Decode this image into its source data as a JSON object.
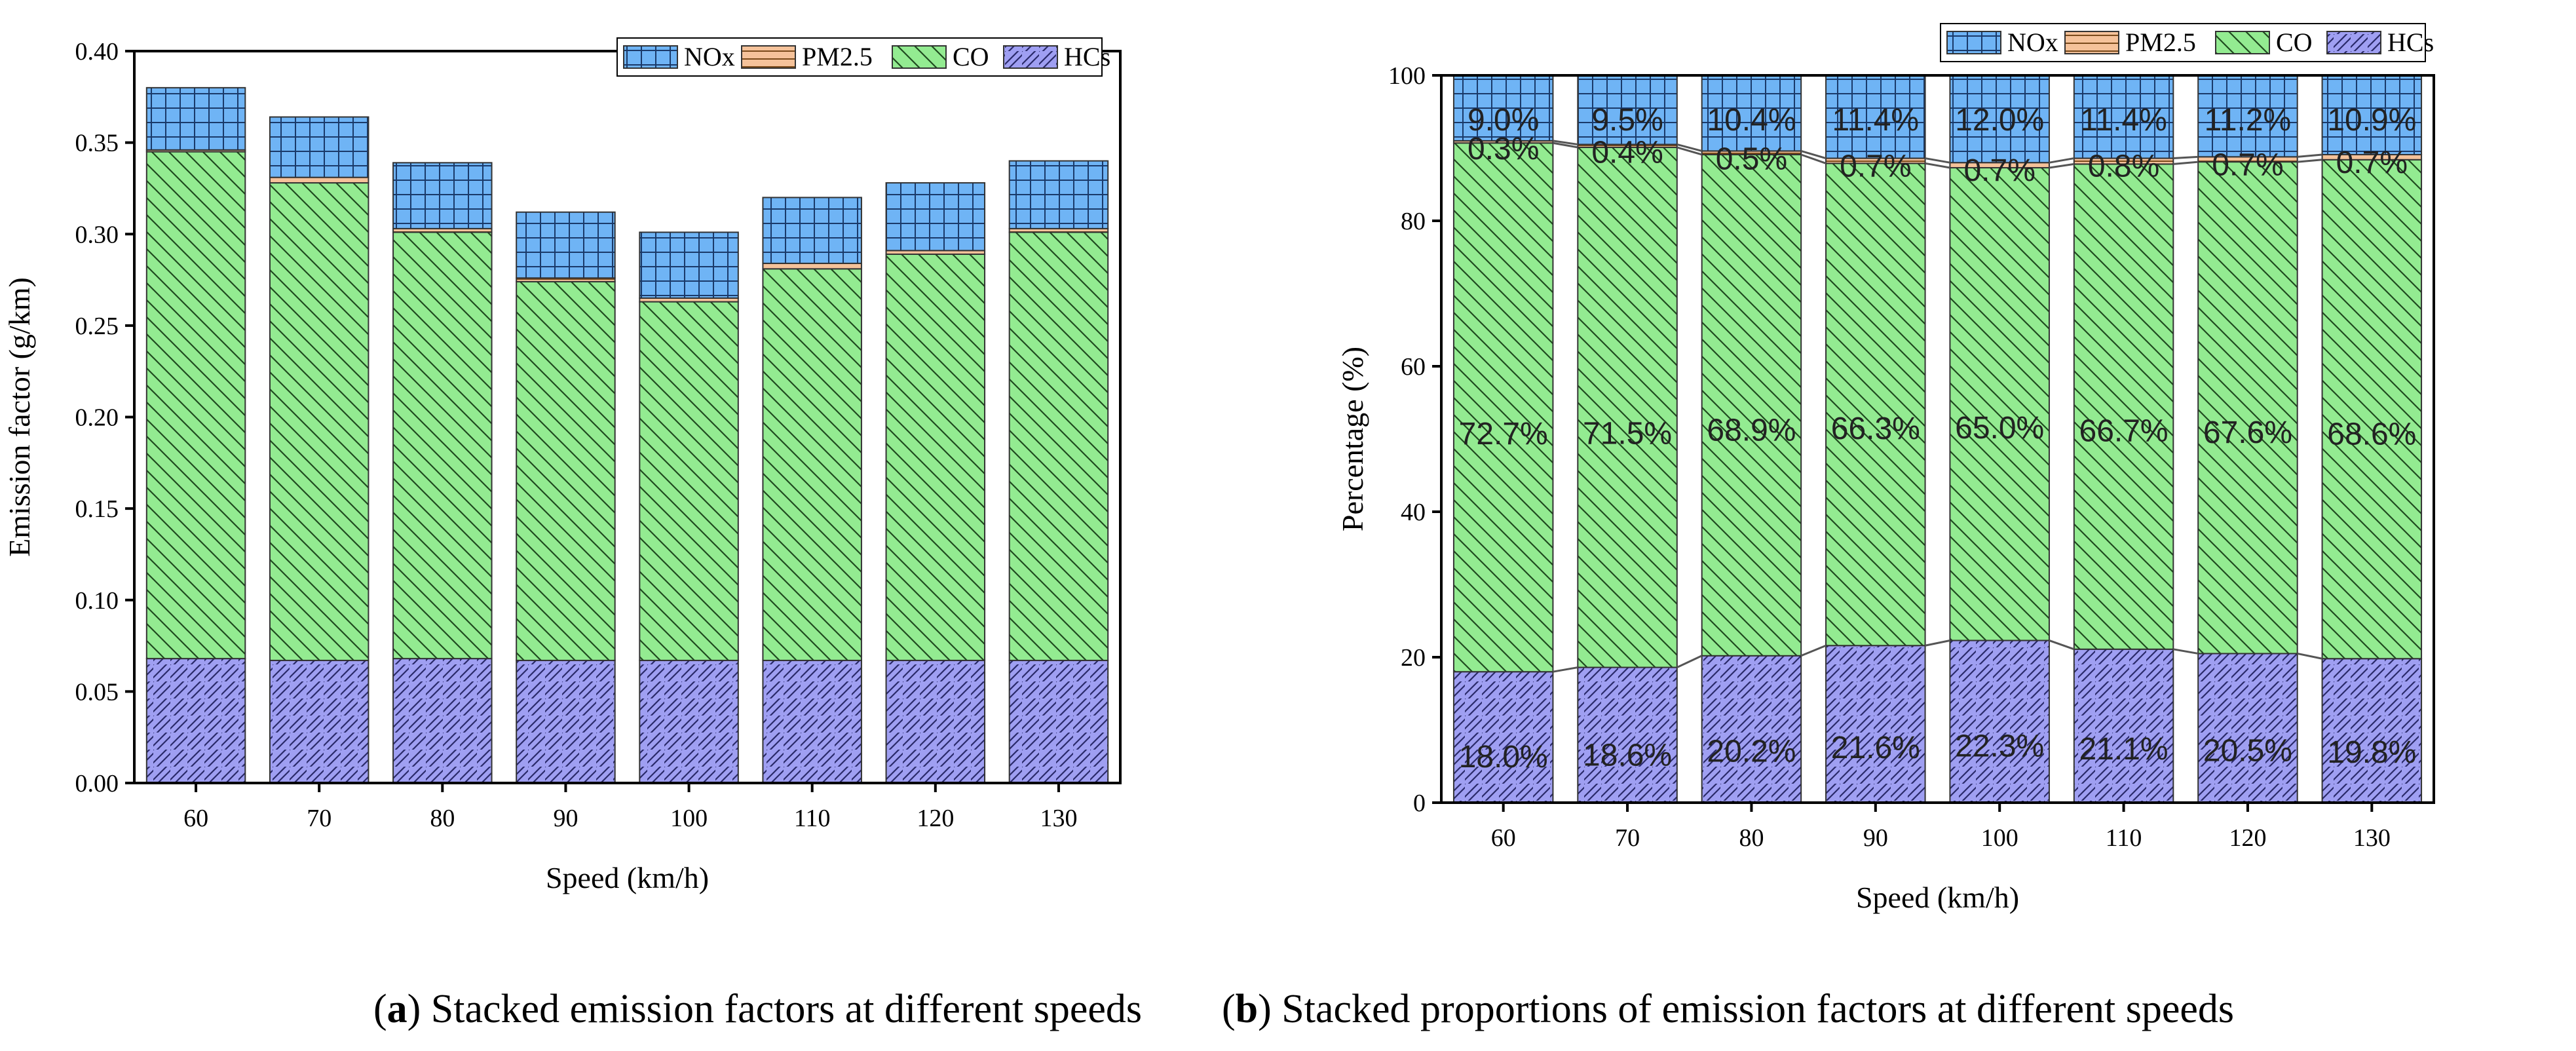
{
  "series_order": [
    "HCs",
    "CO",
    "PM2.5",
    "NOx"
  ],
  "legend_order": [
    "NOx",
    "PM2.5",
    "CO",
    "HCs"
  ],
  "colors": {
    "HCs": "#9f9ff2",
    "CO": "#93eb91",
    "PM2.5": "#f5c29a",
    "NOx": "#6fb4f5"
  },
  "chart_data": [
    {
      "type": "bar",
      "stacked": true,
      "title": "",
      "xlabel": "Speed (km/h)",
      "ylabel": "Emission factor (g/km)",
      "categories": [
        "60",
        "70",
        "80",
        "90",
        "100",
        "110",
        "120",
        "130"
      ],
      "ylim": [
        0,
        0.4
      ],
      "yticks": [
        "0.00",
        "0.05",
        "0.10",
        "0.15",
        "0.20",
        "0.25",
        "0.30",
        "0.35",
        "0.40"
      ],
      "legend": "top-right",
      "series": [
        {
          "name": "HCs",
          "values": [
            0.068,
            0.067,
            0.068,
            0.067,
            0.067,
            0.067,
            0.067,
            0.067
          ]
        },
        {
          "name": "CO",
          "values": [
            0.277,
            0.261,
            0.233,
            0.207,
            0.196,
            0.214,
            0.222,
            0.234
          ]
        },
        {
          "name": "PM2.5",
          "values": [
            0.001,
            0.003,
            0.002,
            0.002,
            0.002,
            0.003,
            0.002,
            0.002
          ]
        },
        {
          "name": "NOx",
          "values": [
            0.034,
            0.033,
            0.036,
            0.036,
            0.036,
            0.036,
            0.037,
            0.037
          ]
        }
      ]
    },
    {
      "type": "bar",
      "stacked": true,
      "title": "",
      "xlabel": "Speed (km/h)",
      "ylabel": "Percentage (%)",
      "categories": [
        "60",
        "70",
        "80",
        "90",
        "100",
        "110",
        "120",
        "130"
      ],
      "ylim": [
        0,
        100
      ],
      "yticks": [
        "0",
        "20",
        "40",
        "60",
        "80",
        "100"
      ],
      "legend": "top-right",
      "series": [
        {
          "name": "HCs",
          "values": [
            18.0,
            18.6,
            20.2,
            21.6,
            22.3,
            21.1,
            20.5,
            19.8
          ],
          "labels": [
            "18.0%",
            "18.6%",
            "20.2%",
            "21.6%",
            "22.3%",
            "21.1%",
            "20.5%",
            "19.8%"
          ]
        },
        {
          "name": "CO",
          "values": [
            72.7,
            71.5,
            68.9,
            66.3,
            65.0,
            66.7,
            67.6,
            68.6
          ],
          "labels": [
            "72.7%",
            "71.5%",
            "68.9%",
            "66.3%",
            "65.0%",
            "66.7%",
            "67.6%",
            "68.6%"
          ]
        },
        {
          "name": "PM2.5",
          "values": [
            0.3,
            0.4,
            0.5,
            0.7,
            0.7,
            0.8,
            0.7,
            0.7
          ],
          "labels": [
            "0.3%",
            "0.4%",
            "0.5%",
            "0.7%",
            "0.7%",
            "0.8%",
            "0.7%",
            "0.7%"
          ]
        },
        {
          "name": "NOx",
          "values": [
            9.0,
            9.5,
            10.4,
            11.4,
            12.0,
            11.4,
            11.2,
            10.9
          ],
          "labels": [
            "9.0%",
            "9.5%",
            "10.4%",
            "11.4%",
            "12.0%",
            "11.4%",
            "11.2%",
            "10.9%"
          ]
        }
      ]
    }
  ],
  "captions": [
    {
      "letter": "a",
      "text": ") Stacked emission factors at different speeds"
    },
    {
      "letter": "b",
      "text": ") Stacked proportions of emission factors at different speeds"
    }
  ]
}
